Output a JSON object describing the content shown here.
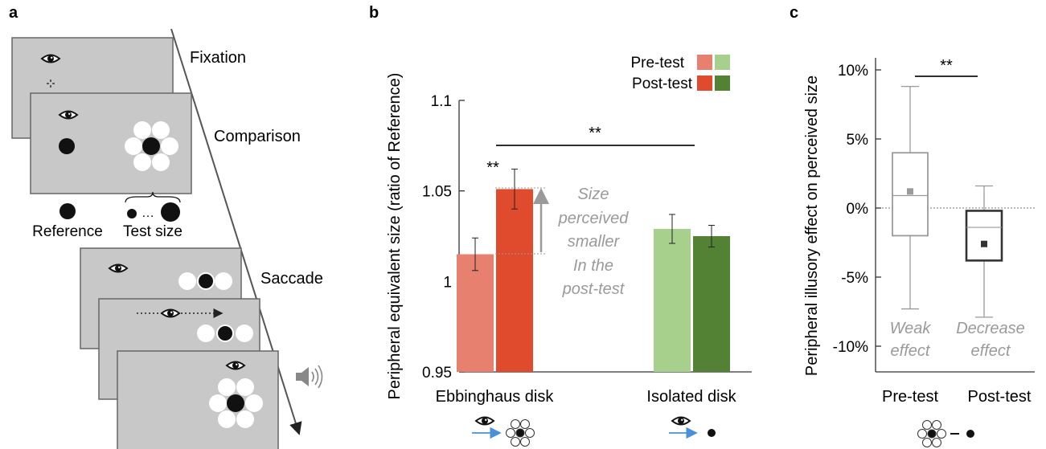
{
  "panels": {
    "a": {
      "letter": "a",
      "phases": [
        "Fixation",
        "Comparison",
        "Saccade"
      ],
      "legend": {
        "reference": "Reference",
        "test_size": "Test size",
        "ellipsis": "…"
      },
      "icons": [
        "eye-icon",
        "speaker-icon",
        "fixation-cross-icon",
        "time-arrow"
      ]
    },
    "b": {
      "letter": "b",
      "legend": {
        "pre": "Pre-test",
        "post": "Post-test"
      },
      "significance": {
        "top": "**",
        "ebbinghaus": "**"
      },
      "annotation": [
        "Size",
        "perceived",
        "smaller",
        "In the",
        "post-test"
      ],
      "icons": [
        "eye-icon",
        "arrow-icon",
        "ebbinghaus-icon",
        "disk-icon"
      ]
    },
    "c": {
      "letter": "c",
      "significance": "**",
      "notes": {
        "pre": [
          "Weak",
          "effect"
        ],
        "post": [
          "Decrease",
          "effect"
        ]
      },
      "icons": [
        "ebbinghaus-minus-disk-icon"
      ]
    }
  },
  "colors": {
    "ebbinghaus_pre": "#e8806f",
    "ebbinghaus_post": "#e04b2d",
    "isolated_pre": "#a8d08d",
    "isolated_post": "#548235",
    "annotation_gray": "#9a9a9a",
    "screen_gray": "#c8c8c8"
  },
  "chart_data": [
    {
      "type": "bar",
      "ylabel": "Peripheral equivalent size (ratio of Reference)",
      "xlabel": "",
      "categories": [
        "Ebbinghaus disk",
        "Isolated disk"
      ],
      "series": [
        {
          "name": "Pre-test",
          "values": [
            1.015,
            1.029
          ],
          "errors": [
            0.009,
            0.008
          ]
        },
        {
          "name": "Post-test",
          "values": [
            1.051,
            1.025
          ],
          "errors": [
            0.011,
            0.006
          ]
        }
      ],
      "ylim": [
        0.95,
        1.1
      ],
      "yticks": [
        0.95,
        1,
        1.05,
        1.1
      ],
      "ytick_labels": [
        "0.95",
        "1",
        "1.05",
        "1.1"
      ],
      "legend": "top-right",
      "grid": false
    },
    {
      "type": "box",
      "ylabel": "Peripheral illusory effect on perceived size",
      "xlabel": "",
      "categories": [
        "Pre-test",
        "Post-test"
      ],
      "boxes": [
        {
          "name": "Pre-test",
          "whisker_low": -7.3,
          "q1": -2.0,
          "median": 0.9,
          "mean": 1.2,
          "q3": 4.0,
          "whisker_high": 8.8
        },
        {
          "name": "Post-test",
          "whisker_low": -7.9,
          "q1": -3.8,
          "median": -1.4,
          "mean": -2.6,
          "q3": -0.2,
          "whisker_high": 1.6
        }
      ],
      "ylim": [
        -12,
        10
      ],
      "yticks": [
        10,
        5,
        0,
        -5,
        -10
      ],
      "ytick_labels": [
        "10%",
        "5%",
        "0%",
        "-5%",
        "-10%"
      ],
      "reference_line": 0,
      "grid": false
    }
  ]
}
